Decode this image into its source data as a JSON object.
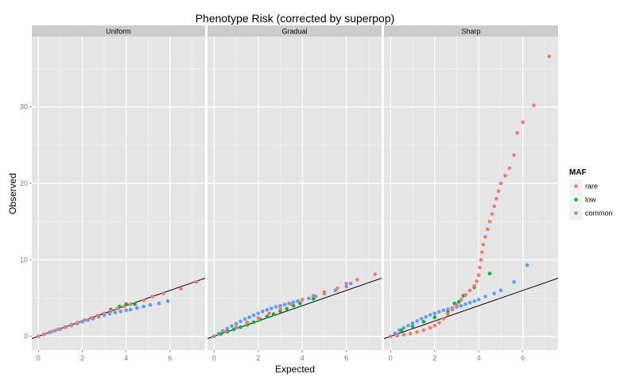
{
  "chart_data": {
    "type": "scatter",
    "title": "Phenotype Risk (corrected by superpop)",
    "xlabel": "Expected",
    "ylabel": "Observed",
    "facets": [
      "Uniform",
      "Gradual",
      "Sharp"
    ],
    "xlim": [
      -0.3,
      7.6
    ],
    "ylim": [
      -1.8,
      39.2
    ],
    "x_ticks": [
      0,
      2,
      4,
      6
    ],
    "y_ticks": [
      0,
      10,
      20,
      30
    ],
    "grid": true,
    "reference_line": {
      "slope": 1,
      "intercept": 0,
      "color": "#000000"
    },
    "legend": {
      "title": "MAF",
      "position": "right",
      "entries": [
        {
          "label": "rare",
          "color": "#F8766D"
        },
        {
          "label": "low",
          "color": "#00BA38"
        },
        {
          "label": "common",
          "color": "#619CFF"
        }
      ]
    },
    "panels": [
      {
        "facet": "Uniform",
        "series": [
          {
            "name": "rare",
            "color": "#F8766D",
            "points": [
              [
                0,
                0
              ],
              [
                0.3,
                0.3
              ],
              [
                0.6,
                0.6
              ],
              [
                0.9,
                0.9
              ],
              [
                1.2,
                1.2
              ],
              [
                1.5,
                1.5
              ],
              [
                1.8,
                1.8
              ],
              [
                2.1,
                2.1
              ],
              [
                2.4,
                2.4
              ],
              [
                2.7,
                2.7
              ],
              [
                3.0,
                3.0
              ],
              [
                3.3,
                3.3
              ],
              [
                3.6,
                3.6
              ],
              [
                3.9,
                3.9
              ],
              [
                4.2,
                4.2
              ],
              [
                4.8,
                4.7
              ],
              [
                5.2,
                5.2
              ],
              [
                5.7,
                5.6
              ],
              [
                6.5,
                6.2
              ],
              [
                7.2,
                7.1
              ]
            ]
          },
          {
            "name": "low",
            "color": "#00BA38",
            "points": [
              [
                3.3,
                3.5
              ],
              [
                3.7,
                3.9
              ],
              [
                4.0,
                4.2
              ],
              [
                4.4,
                4.2
              ]
            ]
          },
          {
            "name": "common",
            "color": "#619CFF",
            "points": [
              [
                0,
                0
              ],
              [
                0.25,
                0.25
              ],
              [
                0.5,
                0.5
              ],
              [
                0.75,
                0.72
              ],
              [
                1.0,
                0.95
              ],
              [
                1.25,
                1.2
              ],
              [
                1.5,
                1.4
              ],
              [
                1.75,
                1.65
              ],
              [
                2.0,
                1.9
              ],
              [
                2.25,
                2.1
              ],
              [
                2.5,
                2.3
              ],
              [
                2.75,
                2.55
              ],
              [
                3.0,
                2.75
              ],
              [
                3.25,
                2.95
              ],
              [
                3.5,
                3.1
              ],
              [
                3.75,
                3.25
              ],
              [
                4.0,
                3.4
              ],
              [
                4.2,
                3.5
              ],
              [
                4.5,
                3.7
              ],
              [
                4.8,
                3.9
              ],
              [
                5.1,
                4.1
              ],
              [
                5.5,
                4.3
              ],
              [
                5.9,
                4.6
              ]
            ]
          }
        ]
      },
      {
        "facet": "Gradual",
        "series": [
          {
            "name": "rare",
            "color": "#F8766D",
            "points": [
              [
                0,
                0
              ],
              [
                0.5,
                0.6
              ],
              [
                1.0,
                1.2
              ],
              [
                1.5,
                1.8
              ],
              [
                2.0,
                2.4
              ],
              [
                2.5,
                3.0
              ],
              [
                3.0,
                3.6
              ],
              [
                3.5,
                4.2
              ],
              [
                4.0,
                4.8
              ],
              [
                4.5,
                5.3
              ],
              [
                5.0,
                5.8
              ],
              [
                5.6,
                6.3
              ],
              [
                6.0,
                6.9
              ],
              [
                6.5,
                7.4
              ],
              [
                7.3,
                8.1
              ]
            ]
          },
          {
            "name": "low",
            "color": "#00BA38",
            "points": [
              [
                0,
                0
              ],
              [
                0.3,
                0.3
              ],
              [
                0.6,
                0.6
              ],
              [
                0.9,
                0.9
              ],
              [
                1.2,
                1.2
              ],
              [
                1.5,
                1.5
              ],
              [
                1.8,
                1.85
              ],
              [
                2.1,
                2.2
              ],
              [
                2.4,
                2.6
              ],
              [
                2.7,
                2.9
              ],
              [
                3.0,
                3.3
              ],
              [
                3.3,
                3.6
              ],
              [
                3.6,
                4.0
              ],
              [
                3.9,
                4.3
              ],
              [
                4.5,
                4.9
              ]
            ]
          },
          {
            "name": "common",
            "color": "#619CFF",
            "points": [
              [
                0,
                0
              ],
              [
                0.2,
                0.35
              ],
              [
                0.4,
                0.7
              ],
              [
                0.6,
                1.0
              ],
              [
                0.8,
                1.35
              ],
              [
                1.0,
                1.65
              ],
              [
                1.2,
                1.95
              ],
              [
                1.4,
                2.25
              ],
              [
                1.6,
                2.5
              ],
              [
                1.8,
                2.75
              ],
              [
                2.0,
                3.0
              ],
              [
                2.2,
                3.25
              ],
              [
                2.4,
                3.45
              ],
              [
                2.6,
                3.65
              ],
              [
                2.8,
                3.85
              ],
              [
                3.0,
                4.0
              ],
              [
                3.2,
                4.15
              ],
              [
                3.4,
                4.3
              ],
              [
                3.6,
                4.45
              ],
              [
                3.8,
                4.6
              ],
              [
                4.0,
                4.75
              ],
              [
                4.3,
                4.95
              ],
              [
                4.6,
                5.2
              ],
              [
                5.0,
                5.6
              ],
              [
                5.5,
                6.0
              ],
              [
                6.0,
                6.5
              ],
              [
                6.2,
                6.9
              ]
            ]
          }
        ]
      },
      {
        "facet": "Sharp",
        "series": [
          {
            "name": "rare",
            "color": "#F8766D",
            "points": [
              [
                0,
                0
              ],
              [
                0.3,
                0.1
              ],
              [
                0.6,
                0.2
              ],
              [
                0.9,
                0.35
              ],
              [
                1.2,
                0.55
              ],
              [
                1.5,
                0.8
              ],
              [
                1.8,
                1.1
              ],
              [
                2.0,
                1.4
              ],
              [
                2.2,
                1.8
              ],
              [
                2.4,
                2.3
              ],
              [
                2.6,
                2.9
              ],
              [
                2.8,
                3.5
              ],
              [
                3.0,
                4.1
              ],
              [
                3.2,
                4.8
              ],
              [
                3.4,
                5.4
              ],
              [
                3.6,
                6.0
              ],
              [
                3.8,
                6.6
              ],
              [
                3.9,
                7.2
              ],
              [
                4.0,
                8.0
              ],
              [
                4.05,
                9.0
              ],
              [
                4.1,
                10.0
              ],
              [
                4.15,
                11.0
              ],
              [
                4.2,
                12.0
              ],
              [
                4.3,
                13.0
              ],
              [
                4.4,
                14.0
              ],
              [
                4.5,
                15.0
              ],
              [
                4.6,
                16.0
              ],
              [
                4.7,
                17.0
              ],
              [
                4.8,
                18.0
              ],
              [
                4.9,
                19.0
              ],
              [
                5.0,
                20.0
              ],
              [
                5.2,
                21.0
              ],
              [
                5.4,
                22.0
              ],
              [
                5.6,
                23.7
              ],
              [
                5.75,
                26.6
              ],
              [
                6.0,
                28.0
              ],
              [
                6.5,
                30.2
              ],
              [
                7.2,
                36.6
              ]
            ]
          },
          {
            "name": "low",
            "color": "#00BA38",
            "points": [
              [
                0.5,
                0.8
              ],
              [
                1.0,
                1.3
              ],
              [
                1.5,
                1.9
              ],
              [
                2.0,
                2.5
              ],
              [
                2.6,
                3.2
              ],
              [
                2.9,
                4.3
              ],
              [
                3.1,
                4.5
              ],
              [
                3.3,
                5.3
              ],
              [
                3.8,
                6.4
              ],
              [
                4.5,
                8.2
              ]
            ]
          },
          {
            "name": "common",
            "color": "#619CFF",
            "points": [
              [
                0,
                0
              ],
              [
                0.2,
                0.4
              ],
              [
                0.4,
                0.8
              ],
              [
                0.6,
                1.1
              ],
              [
                0.8,
                1.4
              ],
              [
                1.0,
                1.7
              ],
              [
                1.2,
                2.0
              ],
              [
                1.4,
                2.3
              ],
              [
                1.6,
                2.55
              ],
              [
                1.8,
                2.8
              ],
              [
                2.0,
                3.0
              ],
              [
                2.2,
                3.2
              ],
              [
                2.4,
                3.4
              ],
              [
                2.6,
                3.55
              ],
              [
                2.8,
                3.7
              ],
              [
                3.0,
                3.85
              ],
              [
                3.2,
                4.0
              ],
              [
                3.4,
                4.2
              ],
              [
                3.6,
                4.4
              ],
              [
                3.8,
                4.6
              ],
              [
                4.0,
                4.8
              ],
              [
                4.3,
                5.2
              ],
              [
                4.7,
                5.6
              ],
              [
                5.0,
                6.0
              ],
              [
                5.6,
                7.1
              ],
              [
                6.2,
                9.3
              ]
            ]
          }
        ]
      }
    ]
  }
}
